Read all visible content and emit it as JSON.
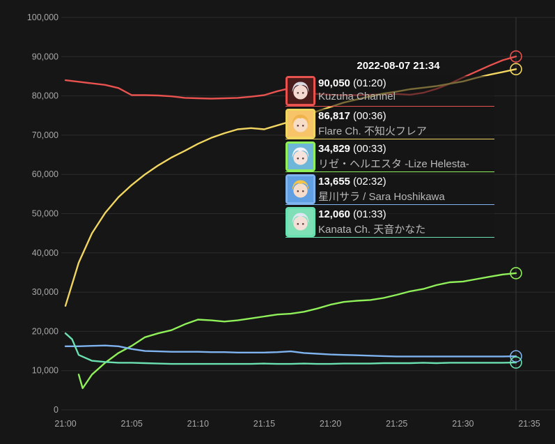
{
  "chart_data": {
    "type": "line",
    "x_unit": "time (HH:MM)",
    "xlim": [
      "21:00",
      "21:35"
    ],
    "ylim": [
      0,
      100000
    ],
    "y_ticks": [
      0,
      10000,
      20000,
      30000,
      40000,
      50000,
      60000,
      70000,
      80000,
      90000,
      100000
    ],
    "y_tick_labels": [
      "0",
      "10,000",
      "20,000",
      "30,000",
      "40,000",
      "50,000",
      "60,000",
      "70,000",
      "80,000",
      "90,000",
      "100,000"
    ],
    "x_tick_labels": [
      "21:00",
      "21:05",
      "21:10",
      "21:15",
      "21:20",
      "21:25",
      "21:30",
      "21:35"
    ],
    "grid": true,
    "hover_time": "21:34",
    "series": [
      {
        "name": "Kuzuha Channel",
        "color": "#e8524f",
        "points": [
          [
            "21:00",
            84000
          ],
          [
            "21:01",
            83600
          ],
          [
            "21:02",
            83200
          ],
          [
            "21:03",
            82800
          ],
          [
            "21:04",
            82000
          ],
          [
            "21:05",
            80200
          ],
          [
            "21:06",
            80200
          ],
          [
            "21:07",
            80100
          ],
          [
            "21:08",
            79900
          ],
          [
            "21:09",
            79500
          ],
          [
            "21:10",
            79400
          ],
          [
            "21:11",
            79300
          ],
          [
            "21:12",
            79400
          ],
          [
            "21:13",
            79500
          ],
          [
            "21:14",
            79800
          ],
          [
            "21:15",
            80200
          ],
          [
            "21:16",
            81200
          ],
          [
            "21:17",
            82000
          ],
          [
            "21:18",
            80800
          ],
          [
            "21:19",
            80500
          ],
          [
            "21:20",
            80300
          ],
          [
            "21:21",
            80200
          ],
          [
            "21:22",
            80200
          ],
          [
            "21:23",
            80300
          ],
          [
            "21:24",
            80400
          ],
          [
            "21:25",
            80500
          ],
          [
            "21:26",
            80300
          ],
          [
            "21:27",
            80800
          ],
          [
            "21:28",
            81800
          ],
          [
            "21:29",
            83100
          ],
          [
            "21:30",
            84700
          ],
          [
            "21:31",
            86200
          ],
          [
            "21:32",
            87700
          ],
          [
            "21:33",
            89100
          ],
          [
            "21:34",
            90050
          ]
        ]
      },
      {
        "name": "Flare Ch. 不知火フレア",
        "color": "#f2d662",
        "points": [
          [
            "21:00",
            26500
          ],
          [
            "21:01",
            37500
          ],
          [
            "21:02",
            45000
          ],
          [
            "21:03",
            50200
          ],
          [
            "21:04",
            54200
          ],
          [
            "21:05",
            57300
          ],
          [
            "21:06",
            60000
          ],
          [
            "21:07",
            62300
          ],
          [
            "21:08",
            64300
          ],
          [
            "21:09",
            66000
          ],
          [
            "21:10",
            67800
          ],
          [
            "21:11",
            69300
          ],
          [
            "21:12",
            70500
          ],
          [
            "21:13",
            71500
          ],
          [
            "21:14",
            71800
          ],
          [
            "21:15",
            71500
          ],
          [
            "21:16",
            72500
          ],
          [
            "21:17",
            73500
          ],
          [
            "21:18",
            74700
          ],
          [
            "21:19",
            76100
          ],
          [
            "21:20",
            77200
          ],
          [
            "21:21",
            78300
          ],
          [
            "21:22",
            79100
          ],
          [
            "21:23",
            79900
          ],
          [
            "21:24",
            80600
          ],
          [
            "21:25",
            81100
          ],
          [
            "21:26",
            81700
          ],
          [
            "21:27",
            82100
          ],
          [
            "21:28",
            82500
          ],
          [
            "21:29",
            83100
          ],
          [
            "21:30",
            83700
          ],
          [
            "21:31",
            84600
          ],
          [
            "21:32",
            85400
          ],
          [
            "21:33",
            86100
          ],
          [
            "21:34",
            86817
          ]
        ]
      },
      {
        "name": "リゼ・ヘルエスタ -Lize Helesta-",
        "color": "#8ff05a",
        "points": [
          [
            "21:01",
            9000
          ],
          [
            "21:01.3",
            5500
          ],
          [
            "21:02",
            9000
          ],
          [
            "21:03",
            12000
          ],
          [
            "21:04",
            14500
          ],
          [
            "21:05",
            16300
          ],
          [
            "21:06",
            18500
          ],
          [
            "21:07",
            19500
          ],
          [
            "21:08",
            20300
          ],
          [
            "21:09",
            21800
          ],
          [
            "21:10",
            23000
          ],
          [
            "21:11",
            22800
          ],
          [
            "21:12",
            22500
          ],
          [
            "21:13",
            22800
          ],
          [
            "21:14",
            23300
          ],
          [
            "21:15",
            23800
          ],
          [
            "21:16",
            24300
          ],
          [
            "21:17",
            24500
          ],
          [
            "21:18",
            25000
          ],
          [
            "21:19",
            25800
          ],
          [
            "21:20",
            26800
          ],
          [
            "21:21",
            27500
          ],
          [
            "21:22",
            27800
          ],
          [
            "21:23",
            28000
          ],
          [
            "21:24",
            28500
          ],
          [
            "21:25",
            29300
          ],
          [
            "21:26",
            30200
          ],
          [
            "21:27",
            30800
          ],
          [
            "21:28",
            31800
          ],
          [
            "21:29",
            32500
          ],
          [
            "21:30",
            32700
          ],
          [
            "21:31",
            33300
          ],
          [
            "21:32",
            33900
          ],
          [
            "21:33",
            34500
          ],
          [
            "21:34",
            34829
          ]
        ]
      },
      {
        "name": "星川サラ / Sara Hoshikawa",
        "color": "#7fb4f0",
        "points": [
          [
            "21:00",
            16200
          ],
          [
            "21:01",
            16200
          ],
          [
            "21:02",
            16300
          ],
          [
            "21:03",
            16400
          ],
          [
            "21:04",
            16200
          ],
          [
            "21:05",
            15500
          ],
          [
            "21:06",
            15000
          ],
          [
            "21:07",
            14900
          ],
          [
            "21:08",
            14800
          ],
          [
            "21:09",
            14800
          ],
          [
            "21:10",
            14800
          ],
          [
            "21:11",
            14700
          ],
          [
            "21:12",
            14700
          ],
          [
            "21:13",
            14600
          ],
          [
            "21:14",
            14600
          ],
          [
            "21:15",
            14600
          ],
          [
            "21:16",
            14700
          ],
          [
            "21:17",
            14900
          ],
          [
            "21:18",
            14500
          ],
          [
            "21:19",
            14300
          ],
          [
            "21:20",
            14100
          ],
          [
            "21:21",
            14000
          ],
          [
            "21:22",
            13900
          ],
          [
            "21:23",
            13800
          ],
          [
            "21:24",
            13700
          ],
          [
            "21:25",
            13600
          ],
          [
            "21:26",
            13600
          ],
          [
            "21:27",
            13600
          ],
          [
            "21:28",
            13600
          ],
          [
            "21:29",
            13600
          ],
          [
            "21:30",
            13600
          ],
          [
            "21:31",
            13600
          ],
          [
            "21:32",
            13600
          ],
          [
            "21:33",
            13600
          ],
          [
            "21:34",
            13655
          ]
        ]
      },
      {
        "name": "Kanata Ch. 天音かなた",
        "color": "#6be0b0",
        "points": [
          [
            "21:00",
            19500
          ],
          [
            "21:00.5",
            18000
          ],
          [
            "21:01",
            14000
          ],
          [
            "21:02",
            12500
          ],
          [
            "21:03",
            12200
          ],
          [
            "21:04",
            12000
          ],
          [
            "21:05",
            12000
          ],
          [
            "21:06",
            11900
          ],
          [
            "21:07",
            11800
          ],
          [
            "21:08",
            11700
          ],
          [
            "21:09",
            11700
          ],
          [
            "21:10",
            11700
          ],
          [
            "21:11",
            11700
          ],
          [
            "21:12",
            11700
          ],
          [
            "21:13",
            11700
          ],
          [
            "21:14",
            11700
          ],
          [
            "21:15",
            11800
          ],
          [
            "21:16",
            11700
          ],
          [
            "21:17",
            11700
          ],
          [
            "21:18",
            11800
          ],
          [
            "21:19",
            11700
          ],
          [
            "21:20",
            11700
          ],
          [
            "21:21",
            11800
          ],
          [
            "21:22",
            11800
          ],
          [
            "21:23",
            11800
          ],
          [
            "21:24",
            11900
          ],
          [
            "21:25",
            11900
          ],
          [
            "21:26",
            11900
          ],
          [
            "21:27",
            12000
          ],
          [
            "21:28",
            11900
          ],
          [
            "21:29",
            12000
          ],
          [
            "21:30",
            12000
          ],
          [
            "21:31",
            12000
          ],
          [
            "21:32",
            12000
          ],
          [
            "21:33",
            12000
          ],
          [
            "21:34",
            12060
          ]
        ]
      }
    ]
  },
  "tooltip": {
    "time": "2022-08-07 21:34",
    "entries": [
      {
        "value": "90,050",
        "duration": "(01:20)",
        "name": "Kuzuha Channel",
        "color": "#e8524f",
        "avatar_icon": "silver-hair-avatar"
      },
      {
        "value": "86,817",
        "duration": "(00:36)",
        "name": "Flare Ch. 不知火フレア",
        "color": "#f2d662",
        "avatar_icon": "blonde-hair-avatar"
      },
      {
        "value": "34,829",
        "duration": "(00:33)",
        "name": "リゼ・ヘルエスタ -Lize Helesta-",
        "color": "#8ff05a",
        "avatar_icon": "white-hair-avatar"
      },
      {
        "value": "13,655",
        "duration": "(02:32)",
        "name": "星川サラ / Sara Hoshikawa",
        "color": "#7fb4f0",
        "avatar_icon": "golden-hair-avatar"
      },
      {
        "value": "12,060",
        "duration": "(01:33)",
        "name": "Kanata Ch. 天音かなた",
        "color": "#6be0b0",
        "avatar_icon": "silver-blue-hair-avatar"
      }
    ]
  }
}
